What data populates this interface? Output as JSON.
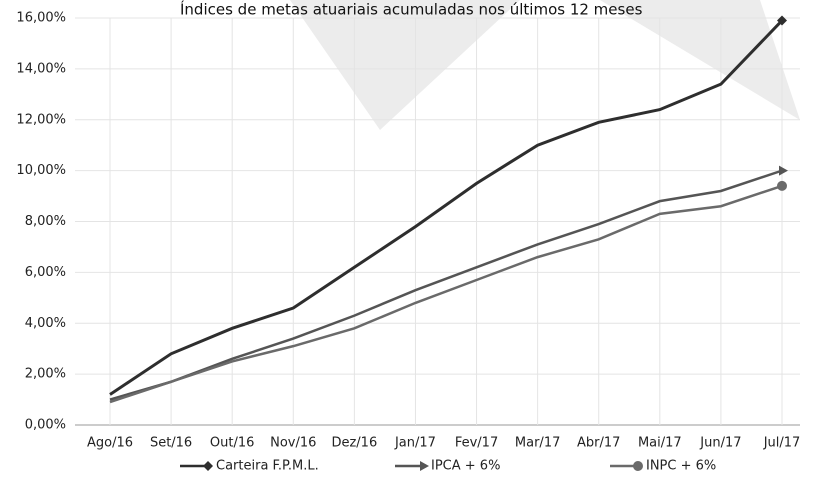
{
  "chart_data": {
    "type": "line",
    "title": "Índices de metas atuariais acumuladas nos últimos 12 meses",
    "categories": [
      "Ago/16",
      "Set/16",
      "Out/16",
      "Nov/16",
      "Dez/16",
      "Jan/17",
      "Fev/17",
      "Mar/17",
      "Abr/17",
      "Mai/17",
      "Jun/17",
      "Jul/17"
    ],
    "series": [
      {
        "name": "Carteira F.P.M.L.",
        "color": "#2e2e2e",
        "marker": "diamond",
        "values": [
          1.2,
          2.8,
          3.8,
          4.6,
          6.2,
          7.8,
          9.5,
          11.0,
          11.9,
          12.4,
          13.4,
          15.9
        ]
      },
      {
        "name": "IPCA + 6%",
        "color": "#555555",
        "marker": "arrow",
        "values": [
          1.0,
          1.7,
          2.6,
          3.4,
          4.3,
          5.3,
          6.2,
          7.1,
          7.9,
          8.8,
          9.2,
          10.0
        ]
      },
      {
        "name": "INPC + 6%",
        "color": "#6a6a6a",
        "marker": "circle",
        "values": [
          0.9,
          1.7,
          2.5,
          3.1,
          3.8,
          4.8,
          5.7,
          6.6,
          7.3,
          8.3,
          8.6,
          9.4
        ]
      }
    ],
    "ylim": [
      0,
      16
    ],
    "yticks": [
      {
        "value": 0,
        "label": "0,00%"
      },
      {
        "value": 2,
        "label": "2,00%"
      },
      {
        "value": 4,
        "label": "4,00%"
      },
      {
        "value": 6,
        "label": "6,00%"
      },
      {
        "value": 8,
        "label": "8,00%"
      },
      {
        "value": 10,
        "label": "10,00%"
      },
      {
        "value": 12,
        "label": "12,00%"
      },
      {
        "value": 14,
        "label": "14,00%"
      },
      {
        "value": 16,
        "label": "16,00%"
      }
    ],
    "grid": true,
    "legend": "bottom"
  }
}
